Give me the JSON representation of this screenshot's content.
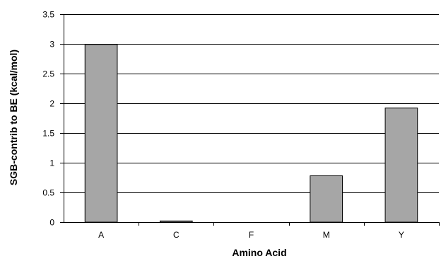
{
  "chart_data": {
    "type": "bar",
    "title": "",
    "xlabel": "Amino Acid",
    "ylabel": "SGB-contrib to BE (kcal/mol)",
    "categories": [
      "A",
      "C",
      "F",
      "M",
      "Y"
    ],
    "values": [
      2.99,
      0.02,
      0,
      0.78,
      1.92
    ],
    "ylim": [
      0,
      3.5
    ],
    "yticks": [
      0,
      0.5,
      1,
      1.5,
      2,
      2.5,
      3,
      3.5
    ],
    "ytick_labels": [
      "0",
      "0.5",
      "1",
      "1.5",
      "2",
      "2.5",
      "3",
      "3.5"
    ],
    "grid": "horizontal",
    "legend": "none",
    "colors": {
      "bar_fill": "#a6a6a6",
      "bar_stroke": "#000000",
      "gridline": "#000000",
      "axis": "#000000"
    }
  }
}
